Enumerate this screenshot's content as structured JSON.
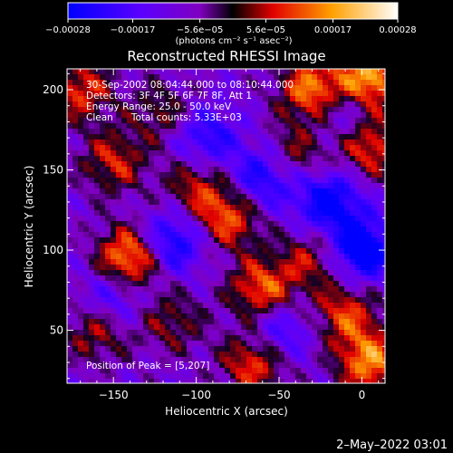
{
  "chart_data": {
    "type": "heatmap",
    "title": "Reconstructed RHESSI Image",
    "xlabel": "Heliocentric X (arcsec)",
    "ylabel": "Heliocentric Y (arcsec)",
    "xlim": [
      -178,
      14
    ],
    "ylim": [
      17,
      213
    ],
    "x_ticks": [
      -150,
      -100,
      -50,
      0
    ],
    "x_tick_labels": [
      "−150",
      "−100",
      "−50",
      "0"
    ],
    "y_ticks": [
      50,
      100,
      150,
      200
    ],
    "y_tick_labels": [
      "50",
      "100",
      "150",
      "200"
    ],
    "colorbar": {
      "ticks": [
        -0.00028,
        -0.00017,
        -5.6e-05,
        5.6e-05,
        0.00017,
        0.00028
      ],
      "tick_labels": [
        "−0.00028",
        "−0.00017",
        "−5.6e−05",
        "5.6e−05",
        "0.00017",
        "0.00028"
      ],
      "unit_label": "(photons cm⁻² s⁻¹ asec⁻²)",
      "colors": [
        "#0000ff",
        "#5a00ff",
        "#8000c0",
        "#000000",
        "#ff2000",
        "#ffa000",
        "#ffffff"
      ]
    },
    "annotations": [
      "30-Sep-2002 08:04:44.000 to 08:10:44.000",
      "Detectors: 3F 4F 5F 6F 7F 8F, Att 1",
      "Energy Range: 25.0 - 50.0 keV",
      "Clean      Total counts: 5.33E+03"
    ],
    "peak_label": "Position of Peak = [5,207]",
    "peak": [
      5,
      207
    ],
    "grid": false,
    "hotspots": [
      {
        "x": -140,
        "y": 95,
        "value": 0.00028
      },
      {
        "x": -80,
        "y": 120,
        "value": 0.0002
      },
      {
        "x": -30,
        "y": 200,
        "value": 0.00024
      },
      {
        "x": 5,
        "y": 207,
        "value": 0.00028
      },
      {
        "x": -60,
        "y": 75,
        "value": 0.00022
      },
      {
        "x": -170,
        "y": 200,
        "value": 0.00018
      },
      {
        "x": -150,
        "y": 155,
        "value": 0.00016
      },
      {
        "x": -100,
        "y": 140,
        "value": 0.00015
      },
      {
        "x": 5,
        "y": 165,
        "value": 0.0002
      },
      {
        "x": -10,
        "y": 60,
        "value": 0.00018
      },
      {
        "x": -30,
        "y": 95,
        "value": 0.00014
      },
      {
        "x": -115,
        "y": 55,
        "value": 0.00012
      },
      {
        "x": -160,
        "y": 50,
        "value": 0.00015
      },
      {
        "x": 5,
        "y": 30,
        "value": 0.00024
      },
      {
        "x": -65,
        "y": 30,
        "value": 0.0002
      },
      {
        "x": -40,
        "y": 160,
        "value": 0.00013
      },
      {
        "x": -120,
        "y": 185,
        "value": 0.00012
      }
    ],
    "coldspots": [
      {
        "x": -115,
        "y": 105,
        "value": -0.0002
      },
      {
        "x": -95,
        "y": 170,
        "value": -0.00016
      },
      {
        "x": -20,
        "y": 130,
        "value": -0.00022
      },
      {
        "x": 0,
        "y": 100,
        "value": -0.00025
      },
      {
        "x": -150,
        "y": 70,
        "value": -0.00014
      },
      {
        "x": -60,
        "y": 145,
        "value": -0.00018
      },
      {
        "x": -50,
        "y": 50,
        "value": -0.00015
      },
      {
        "x": -10,
        "y": 185,
        "value": -0.00012
      }
    ]
  },
  "footer": {
    "date_label": "2–May–2022 03:01"
  }
}
